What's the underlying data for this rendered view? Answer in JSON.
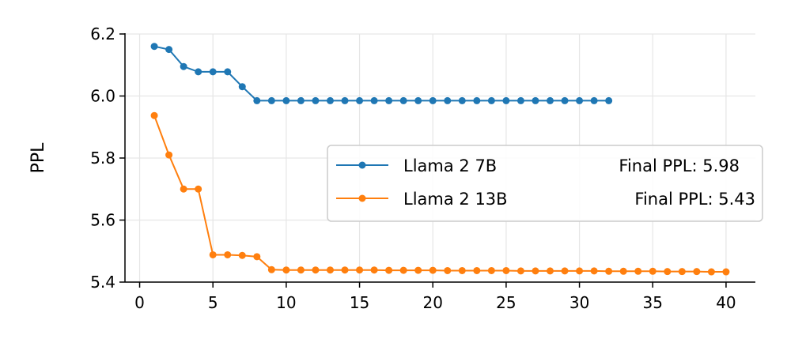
{
  "chart_data": {
    "type": "line",
    "title": "",
    "xlabel": "",
    "ylabel": "PPL",
    "xlim": [
      -1,
      42
    ],
    "ylim": [
      5.4,
      6.2
    ],
    "xticks": [
      "0",
      "5",
      "10",
      "15",
      "20",
      "25",
      "30",
      "35",
      "40"
    ],
    "yticks": [
      "5.4",
      "5.6",
      "5.8",
      "6.0",
      "6.2"
    ],
    "grid": true,
    "legend_position": "right",
    "series": [
      {
        "name": "Llama 2 7B",
        "legend_note": "Final PPL: 5.98",
        "color": "#1f77b4",
        "x": [
          1,
          2,
          3,
          4,
          5,
          6,
          7,
          8,
          9,
          10,
          11,
          12,
          13,
          14,
          15,
          16,
          17,
          18,
          19,
          20,
          21,
          22,
          23,
          24,
          25,
          26,
          27,
          28,
          29,
          30,
          31,
          32
        ],
        "y": [
          6.16,
          6.15,
          6.095,
          6.078,
          6.078,
          6.078,
          6.03,
          5.985,
          5.985,
          5.985,
          5.985,
          5.985,
          5.985,
          5.985,
          5.985,
          5.985,
          5.985,
          5.985,
          5.985,
          5.985,
          5.985,
          5.985,
          5.985,
          5.985,
          5.985,
          5.985,
          5.985,
          5.985,
          5.985,
          5.985,
          5.985,
          5.985
        ]
      },
      {
        "name": "Llama 2 13B",
        "legend_note": "Final PPL: 5.43",
        "color": "#ff7f0e",
        "x": [
          1,
          2,
          3,
          4,
          5,
          6,
          7,
          8,
          9,
          10,
          11,
          12,
          13,
          14,
          15,
          16,
          17,
          18,
          19,
          20,
          21,
          22,
          23,
          24,
          25,
          26,
          27,
          28,
          29,
          30,
          31,
          32,
          33,
          34,
          35,
          36,
          37,
          38,
          39,
          40
        ],
        "y": [
          5.937,
          5.81,
          5.7,
          5.7,
          5.488,
          5.488,
          5.486,
          5.482,
          5.44,
          5.439,
          5.439,
          5.439,
          5.439,
          5.439,
          5.439,
          5.439,
          5.438,
          5.438,
          5.438,
          5.438,
          5.437,
          5.437,
          5.437,
          5.437,
          5.437,
          5.436,
          5.436,
          5.436,
          5.436,
          5.436,
          5.436,
          5.435,
          5.435,
          5.435,
          5.435,
          5.434,
          5.434,
          5.434,
          5.433,
          5.433
        ]
      }
    ]
  }
}
